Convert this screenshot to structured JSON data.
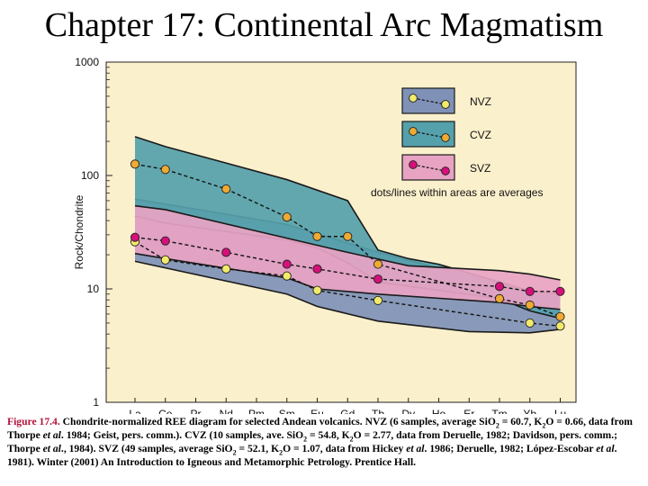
{
  "slide_title": "Chapter 17: Continental Arc Magmatism",
  "chart_data": {
    "type": "line",
    "ylabel": "Rock/Chondrite",
    "yscale": "log",
    "ylim": [
      1,
      1000
    ],
    "yticks": [
      "1",
      "10",
      "100",
      "1000"
    ],
    "categories": [
      "La",
      "Ce",
      "Pr",
      "Nd",
      "Pm",
      "Sm",
      "Eu",
      "Gd",
      "Tb",
      "Dy",
      "Ho",
      "Er",
      "Tm",
      "Yb",
      "Lu"
    ],
    "background": "#fbf0cc",
    "legend": {
      "position": "top-right",
      "note": "dots/lines within areas are averages"
    },
    "fields": [
      {
        "name": "NVZ",
        "color": "#7f91b7",
        "upper": [
          [
            0,
            62
          ],
          [
            5,
            37
          ],
          [
            8,
            21
          ],
          [
            12,
            11
          ],
          [
            13,
            8.6
          ],
          [
            14,
            8
          ]
        ],
        "lower": [
          [
            0,
            17.5
          ],
          [
            5,
            9
          ],
          [
            6,
            7
          ],
          [
            8,
            5.2
          ],
          [
            11,
            4.2
          ],
          [
            13,
            4.1
          ],
          [
            14,
            4.4
          ]
        ]
      },
      {
        "name": "CVZ",
        "color": "#55a1ab",
        "upper": [
          [
            0,
            220
          ],
          [
            1,
            180
          ],
          [
            5,
            92
          ],
          [
            7,
            60
          ],
          [
            8,
            22
          ],
          [
            9,
            18.5
          ],
          [
            10,
            16.5
          ],
          [
            12,
            11.5
          ],
          [
            13,
            9.6
          ],
          [
            14,
            9
          ]
        ],
        "lower": [
          [
            0,
            44
          ],
          [
            1,
            38
          ],
          [
            5,
            27
          ],
          [
            6,
            23
          ],
          [
            7,
            17
          ],
          [
            8,
            11.5
          ],
          [
            12,
            8.2
          ],
          [
            13,
            6.4
          ],
          [
            14,
            5.5
          ]
        ]
      },
      {
        "name": "SVZ",
        "color": "#e8a3c3",
        "upper": [
          [
            0,
            54
          ],
          [
            1,
            50
          ],
          [
            5,
            28
          ],
          [
            7,
            21
          ],
          [
            9,
            16
          ],
          [
            12,
            14.5
          ],
          [
            13,
            13.5
          ],
          [
            14,
            12
          ]
        ],
        "lower": [
          [
            0,
            20.5
          ],
          [
            1,
            18.5
          ],
          [
            5,
            12.5
          ],
          [
            6,
            10
          ],
          [
            8,
            9
          ],
          [
            12,
            7.6
          ],
          [
            13,
            7
          ],
          [
            14,
            6.6
          ]
        ]
      }
    ],
    "series": [
      {
        "name": "NVZ",
        "color": "#f2ea6a",
        "points": [
          [
            0,
            26
          ],
          [
            1,
            18
          ],
          [
            3,
            15
          ],
          [
            5,
            13
          ],
          [
            6,
            9.7
          ],
          [
            8,
            7.9
          ],
          [
            13,
            5
          ],
          [
            14,
            4.7
          ]
        ]
      },
      {
        "name": "CVZ",
        "color": "#eeaa33",
        "points": [
          [
            0,
            126
          ],
          [
            1,
            113
          ],
          [
            3,
            76
          ],
          [
            5,
            43
          ],
          [
            6,
            29
          ],
          [
            7,
            29
          ],
          [
            8,
            16.5
          ],
          [
            12,
            8.2
          ],
          [
            13,
            7.2
          ],
          [
            14,
            5.7
          ]
        ]
      },
      {
        "name": "SVZ",
        "color": "#d6107a",
        "points": [
          [
            0,
            28.5
          ],
          [
            1,
            26.5
          ],
          [
            3,
            21
          ],
          [
            5,
            16.5
          ],
          [
            6,
            15
          ],
          [
            8,
            12.2
          ],
          [
            12,
            10.5
          ],
          [
            13,
            9.5
          ],
          [
            14,
            9.5
          ]
        ]
      }
    ]
  },
  "caption": {
    "figure_label": "Figure 17.4.",
    "part1": " Chondrite-normalized REE diagram for selected Andean volcanics. NVZ (6 samples, average SiO",
    "sub_2a": "2",
    "part2": " = 60.7, K",
    "sub_2b": "2",
    "part3": "O = 0.66, data from Thorpe ",
    "etal1": "et al",
    "part4": ". 1984; Geist, pers. comm.). CVZ (10 samples, ave. SiO",
    "sub_2c": "2",
    "part5": " = 54.8, K",
    "sub_2d": "2",
    "part6": "O = 2.77, data from Deruelle, 1982; Davidson, pers. comm.; Thorpe ",
    "etal2": "et al",
    "part7": "., 1984). SVZ (49 samples, average SiO",
    "sub_2e": "2",
    "part8": " = 52.1, K",
    "sub_2f": "2",
    "part9": "O = 1.07, data from Hickey ",
    "etal3": "et al",
    "part10": ". 1986; Deruelle, 1982; López-Escobar ",
    "etal4": "et al",
    "part11": ". 1981). Winter (2001) An Introduction to Igneous and Metamorphic Petrology. Prentice Hall."
  }
}
